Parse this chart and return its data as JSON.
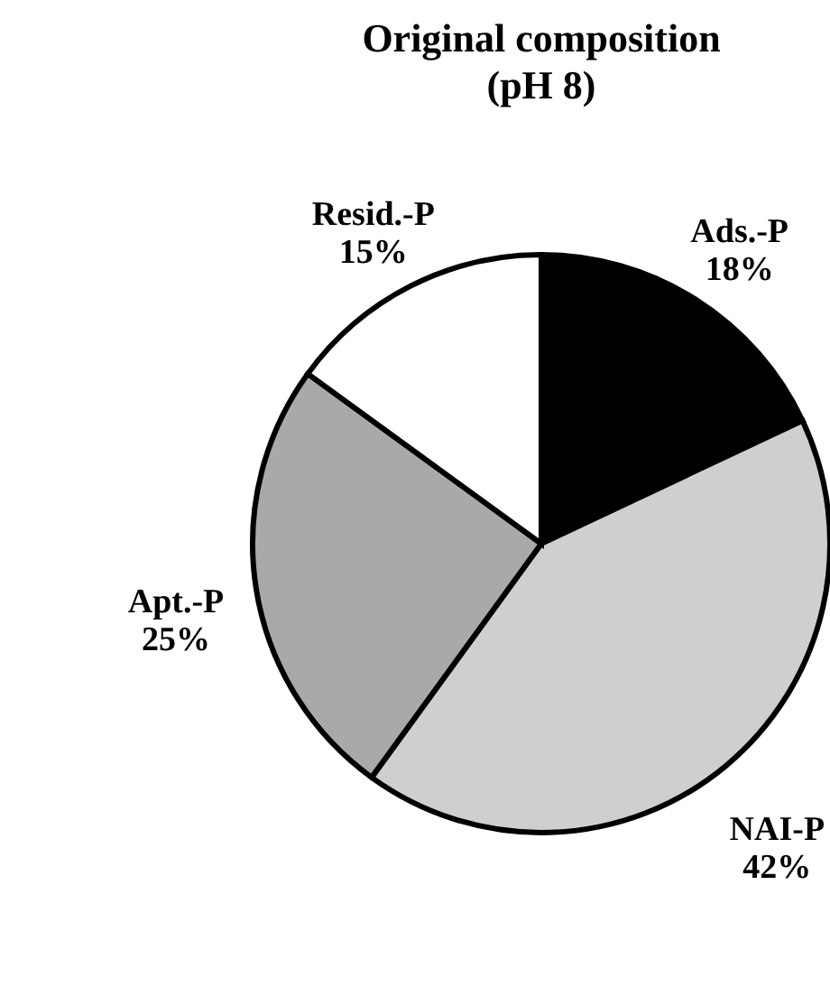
{
  "chart_data": {
    "type": "pie",
    "title": "Original composition",
    "subtitle": "(pH 8)",
    "categories": [
      "Ads.-P",
      "NAI-P",
      "Apt.-P",
      "Resid.-P"
    ],
    "values": [
      18,
      42,
      25,
      15
    ],
    "colors": [
      "#000000",
      "#cfcfcf",
      "#a9a9a9",
      "#ffffff"
    ],
    "value_labels": [
      "18%",
      "42%",
      "25%",
      "15%"
    ]
  }
}
